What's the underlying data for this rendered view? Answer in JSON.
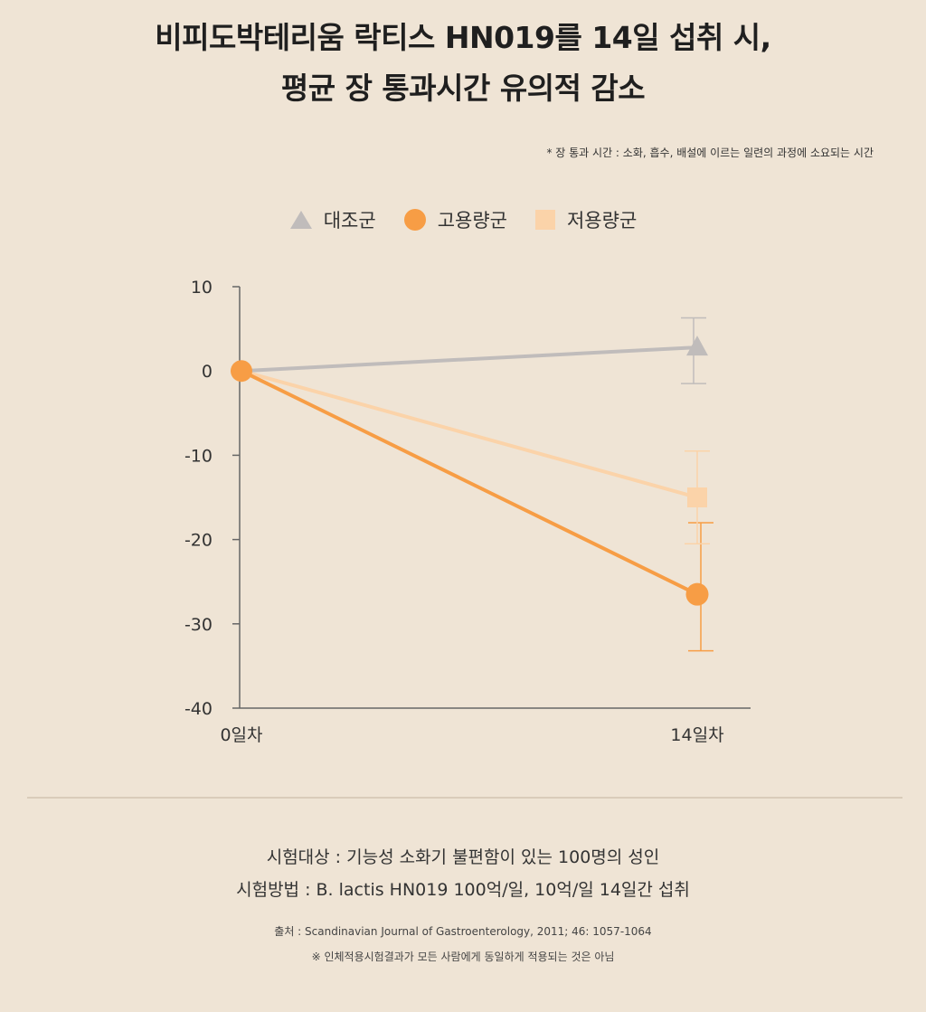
{
  "title": {
    "line1": "비피도박테리움 락티스 HN019를 14일 섭취 시,",
    "line2": "평균 장 통과시간 유의적 감소"
  },
  "footnote": "* 장 통과 시간 : 소화, 흡수, 배설에 이르는 일련의 과정에 소요되는 시간",
  "colors": {
    "background": "#efe4d5",
    "control": "#c0bcbb",
    "high": "#f79d45",
    "low": "#fbd3a9",
    "axis": "#666666"
  },
  "chart_data": {
    "type": "line",
    "categories": [
      "0일차",
      "14일차"
    ],
    "ylim": [
      -40,
      10
    ],
    "yticks": [
      10,
      0,
      -10,
      -20,
      -30,
      -40
    ],
    "legend_position": "top-center",
    "grid": false,
    "series": [
      {
        "name": "대조군",
        "marker": "triangle",
        "color": "#c0bcbb",
        "values": [
          0,
          2.8
        ],
        "error": [
          null,
          [
            -1.5,
            6.3
          ]
        ]
      },
      {
        "name": "고용량군",
        "marker": "circle",
        "color": "#f79d45",
        "values": [
          0,
          -26.5
        ],
        "error": [
          null,
          [
            -33.2,
            -18.0
          ]
        ]
      },
      {
        "name": "저용량군",
        "marker": "square",
        "color": "#fbd3a9",
        "values": [
          0,
          -15.0
        ],
        "error": [
          null,
          [
            -20.5,
            -9.5
          ]
        ]
      }
    ]
  },
  "info": {
    "subjects": "시험대상 : 기능성 소화기 불편함이 있는 100명의 성인",
    "method": "시험방법 : B. lactis HN019 100억/일, 10억/일 14일간 섭취"
  },
  "source": {
    "citation": "출처 : Scandinavian Journal of Gastroenterology, 2011; 46: 1057-1064",
    "disclaimer": "※ 인체적용시험결과가 모든 사람에게 동일하게 적용되는 것은 아님"
  }
}
